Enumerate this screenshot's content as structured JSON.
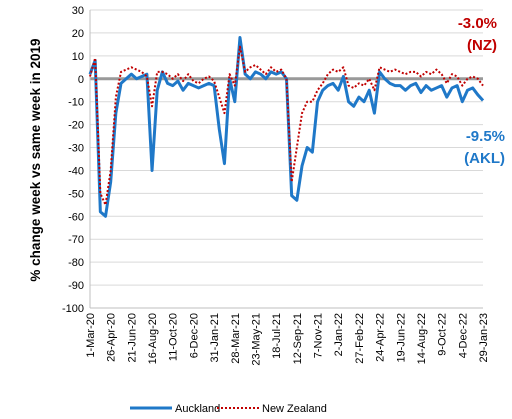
{
  "chart_data": {
    "type": "line",
    "y_label": "% change week vs same week in 2019",
    "categories": [
      "1-Mar-20",
      null,
      null,
      null,
      "26-Apr-20",
      null,
      null,
      null,
      "21-Jun-20",
      null,
      null,
      null,
      "16-Aug-20",
      null,
      null,
      null,
      "11-Oct-20",
      null,
      null,
      null,
      "6-Dec-20",
      null,
      null,
      null,
      "31-Jan-21",
      null,
      null,
      null,
      "28-Mar-21",
      null,
      null,
      null,
      "23-May-21",
      null,
      null,
      null,
      "18-Jul-21",
      null,
      null,
      null,
      "12-Sep-21",
      null,
      null,
      null,
      "7-Nov-21",
      null,
      null,
      null,
      "2-Jan-22",
      null,
      null,
      null,
      "27-Feb-22",
      null,
      null,
      null,
      "24-Apr-22",
      null,
      null,
      null,
      "19-Jun-22",
      null,
      null,
      null,
      "14-Aug-22",
      null,
      null,
      null,
      "9-Oct-22",
      null,
      null,
      null,
      "4-Dec-22",
      null,
      null,
      null,
      "29-Jan-23"
    ],
    "series": [
      {
        "name": "Auckland",
        "color": "#1f78c8",
        "style": "solid",
        "values": [
          2,
          8,
          -58,
          -60,
          -45,
          -15,
          -2,
          0,
          2,
          0,
          1,
          2,
          -40,
          -5,
          3,
          -2,
          -3,
          -1,
          -5,
          -2,
          -3,
          -4,
          -3,
          -2,
          -3,
          -22,
          -37,
          0,
          -10,
          18,
          2,
          0,
          3,
          2,
          0,
          3,
          2,
          3,
          0,
          -51,
          -53,
          -38,
          -30,
          -32,
          -10,
          -5,
          -3,
          -2,
          -5,
          1,
          -10,
          -12,
          -8,
          -10,
          -5,
          -15,
          3,
          0,
          -2,
          -3,
          -3,
          -5,
          -3,
          -2,
          -6,
          -3,
          -5,
          -4,
          -3,
          -8,
          -4,
          -3,
          -10,
          -5,
          -4,
          -7,
          -9.5
        ]
      },
      {
        "name": "New Zealand",
        "color": "#c00000",
        "style": "dotted",
        "values": [
          1,
          9,
          -50,
          -55,
          -40,
          -8,
          3,
          4,
          5,
          4,
          3,
          1,
          -12,
          3,
          3,
          2,
          0,
          2,
          -1,
          2,
          -1,
          -2,
          0,
          1,
          -1,
          -8,
          -15,
          2,
          -3,
          14,
          3,
          5,
          6,
          4,
          2,
          5,
          3,
          4,
          0,
          -45,
          -30,
          -15,
          -10,
          -10,
          -5,
          -2,
          2,
          4,
          3,
          5,
          -3,
          -4,
          -2,
          -3,
          0,
          -5,
          5,
          4,
          3,
          4,
          3,
          2,
          3,
          3,
          1,
          3,
          2,
          4,
          2,
          -2,
          2,
          1,
          -3,
          0,
          1,
          0,
          -3
        ]
      }
    ],
    "annotations": [
      {
        "text": "-3.0%",
        "color": "#c00000"
      },
      {
        "text": "(NZ)",
        "color": "#c00000"
      },
      {
        "text": "-9.5%",
        "color": "#1f78c8"
      },
      {
        "text": "(AKL)",
        "color": "#1f78c8"
      }
    ],
    "ylim": [
      -100,
      30
    ],
    "yticks": [
      -100,
      -90,
      -80,
      -70,
      -60,
      -50,
      -40,
      -30,
      -20,
      -10,
      0,
      10,
      20,
      30
    ],
    "grid": true
  }
}
